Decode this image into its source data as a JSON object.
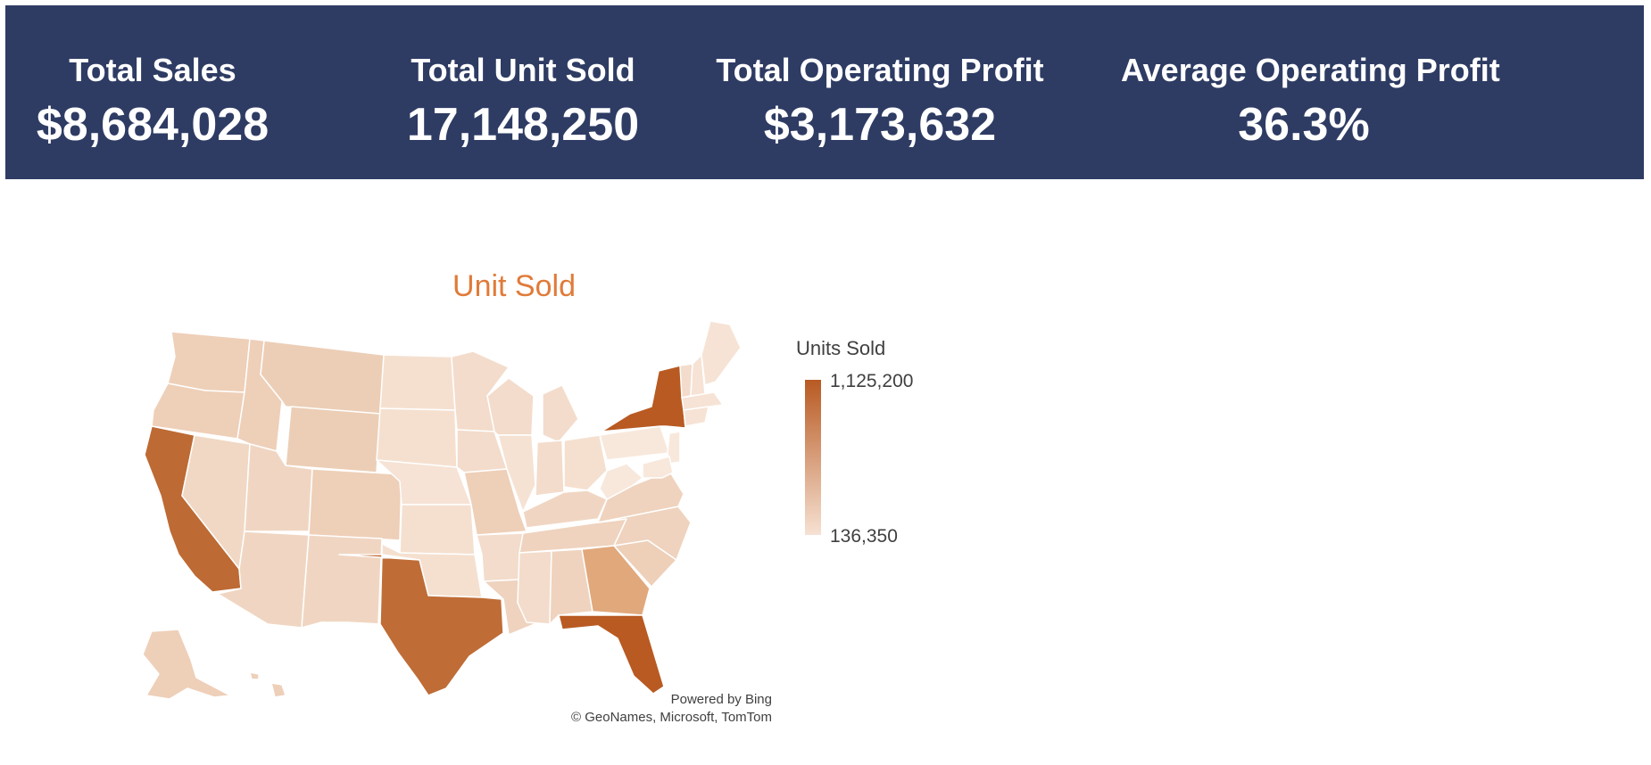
{
  "kpis": [
    {
      "label": "Total Sales",
      "value": "$8,684,028"
    },
    {
      "label": "Total Unit Sold",
      "value": "17,148,250"
    },
    {
      "label": "Total Operating Profit",
      "value": "$3,173,632"
    },
    {
      "label": "Average Operating Profit",
      "value": "36.3%"
    }
  ],
  "map": {
    "title": "Unit Sold",
    "legend": {
      "title": "Units Sold",
      "max_label": "1,125,200",
      "min_label": "136,350",
      "max": 1125200,
      "min": 136350,
      "color_high": "#b85a22",
      "color_low": "#f6e1d2"
    },
    "credit_line1": "Powered by Bing",
    "credit_line2": "© GeoNames, Microsoft,  TomTom"
  }
}
